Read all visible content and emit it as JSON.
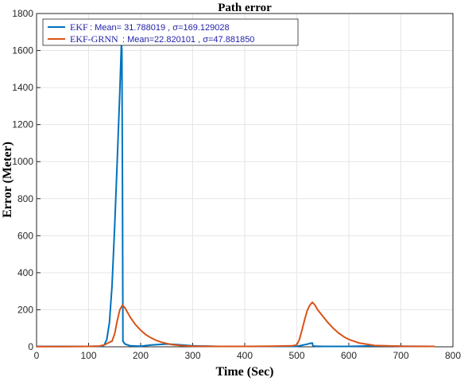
{
  "chart_data": {
    "type": "line",
    "title": "Path error",
    "xlabel": "Time (Sec)",
    "ylabel": "Error (Meter)",
    "xlim": [
      0,
      800
    ],
    "ylim": [
      0,
      1800
    ],
    "xticks": [
      "0",
      "100",
      "200",
      "300",
      "400",
      "500",
      "600",
      "700",
      "800"
    ],
    "yticks": [
      "0",
      "200",
      "400",
      "600",
      "800",
      "1000",
      "1200",
      "1400",
      "1600",
      "1800"
    ],
    "grid": true,
    "legend_position": "top-left",
    "series": [
      {
        "name": "EKF",
        "legend_stat": ": Mean= 31.788019 , σ=169.129028",
        "color": "#0072bd",
        "x": [
          0,
          50,
          100,
          125,
          130,
          135,
          140,
          145,
          150,
          155,
          160,
          163,
          164,
          165,
          166,
          170,
          180,
          200,
          220,
          250,
          270,
          300,
          350,
          400,
          450,
          500,
          510,
          520,
          525,
          530,
          531,
          535,
          550,
          600,
          650,
          700,
          765
        ],
        "y": [
          2,
          2,
          2,
          3,
          10,
          40,
          130,
          330,
          650,
          1000,
          1380,
          1640,
          1600,
          900,
          30,
          15,
          5,
          3,
          10,
          15,
          12,
          5,
          2,
          2,
          2,
          2,
          8,
          14,
          18,
          20,
          5,
          3,
          2,
          2,
          5,
          3,
          2
        ]
      },
      {
        "name": "EKF-GRNN",
        "legend_stat": ": Mean=22.820101 , σ=47.881850",
        "color": "#d95319",
        "x": [
          0,
          50,
          100,
          120,
          130,
          140,
          145,
          150,
          155,
          160,
          165,
          170,
          180,
          190,
          200,
          210,
          220,
          230,
          240,
          250,
          260,
          280,
          300,
          350,
          400,
          450,
          490,
          500,
          505,
          510,
          515,
          520,
          525,
          530,
          535,
          540,
          550,
          560,
          570,
          580,
          590,
          600,
          620,
          650,
          700,
          765
        ],
        "y": [
          1,
          1,
          2,
          4,
          10,
          25,
          30,
          70,
          140,
          200,
          225,
          210,
          160,
          120,
          90,
          65,
          48,
          35,
          25,
          18,
          12,
          6,
          3,
          2,
          2,
          3,
          5,
          10,
          40,
          90,
          145,
          195,
          225,
          240,
          225,
          200,
          165,
          130,
          100,
          75,
          55,
          40,
          20,
          7,
          3,
          2
        ]
      }
    ]
  }
}
